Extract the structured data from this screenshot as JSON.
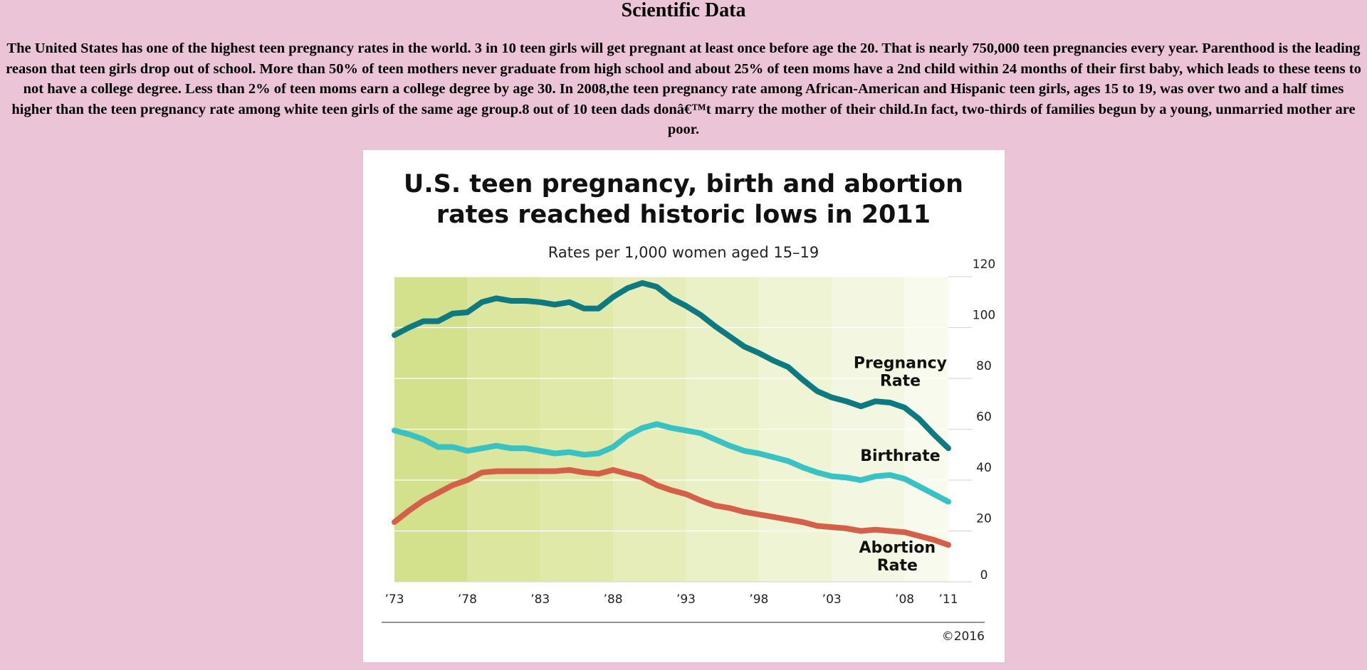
{
  "page": {
    "heading": "Scientific Data",
    "intro": "The United States has one of the highest teen pregnancy rates in the world. 3 in 10 teen girls will get pregnant at least once before age the 20. That is nearly 750,000 teen pregnancies every year. Parenthood is the leading reason that teen girls drop out of school. More than 50% of teen mothers never graduate from high school and about 25% of teen moms have a 2nd child within 24 months of their first baby, which leads to these teens to not have a college degree. Less than 2% of teen moms earn a college degree by age 30. In 2008,the teen pregnancy rate among African-American and Hispanic teen girls, ages 15 to 19, was over two and a half times higher than the teen pregnancy rate among white teen girls of the same age group.8 out of 10 teen dads donâ€™t marry the mother of their child.In fact, two-thirds of families begun by a young, unmarried mother are poor."
  },
  "chart_data": {
    "type": "line",
    "title_lines": [
      "U.S. teen pregnancy, birth and abortion",
      "rates reached historic lows in 2011"
    ],
    "subtitle": "Rates per 1,000 women aged 15–19",
    "copyright": "©2016",
    "xlim": [
      1973,
      2011
    ],
    "ylim": [
      0,
      120
    ],
    "x_ticks": [
      {
        "value": 1973,
        "label": "’73"
      },
      {
        "value": 1978,
        "label": "’78"
      },
      {
        "value": 1983,
        "label": "’83"
      },
      {
        "value": 1988,
        "label": "’88"
      },
      {
        "value": 1993,
        "label": "’93"
      },
      {
        "value": 1998,
        "label": "’98"
      },
      {
        "value": 2003,
        "label": "’03"
      },
      {
        "value": 2008,
        "label": "’08"
      },
      {
        "value": 2011,
        "label": "’11"
      }
    ],
    "y_ticks": [
      {
        "value": 0,
        "label": "0"
      },
      {
        "value": 20,
        "label": "20"
      },
      {
        "value": 40,
        "label": "40"
      },
      {
        "value": 60,
        "label": "60"
      },
      {
        "value": 80,
        "label": "80"
      },
      {
        "value": 100,
        "label": "100"
      },
      {
        "value": 120,
        "label": "120"
      }
    ],
    "y_axis_side": "right",
    "grid": true,
    "background_bands": [
      "#d3e08c",
      "#dce69e",
      "#e0e9a8",
      "#e6edb8",
      "#eaf1c6",
      "#eff4d4",
      "#f3f7e1",
      "#f8faee"
    ],
    "gridline_color": "#ffffff",
    "x": [
      1973,
      1974,
      1975,
      1976,
      1977,
      1978,
      1979,
      1980,
      1981,
      1982,
      1983,
      1984,
      1985,
      1986,
      1987,
      1988,
      1989,
      1990,
      1991,
      1992,
      1993,
      1994,
      1995,
      1996,
      1997,
      1998,
      1999,
      2000,
      2001,
      2002,
      2003,
      2004,
      2005,
      2006,
      2007,
      2008,
      2009,
      2010,
      2011
    ],
    "series": [
      {
        "name": "Pregnancy Rate",
        "label_lines": [
          "Pregnancy",
          "Rate"
        ],
        "color": "#0d7a82",
        "values": [
          97,
          100,
          102.5,
          102.5,
          105.5,
          106,
          110,
          111.5,
          110.5,
          110.5,
          110,
          109,
          110,
          107.5,
          107.5,
          112,
          115.5,
          117.5,
          116,
          111.5,
          108.5,
          105,
          100.5,
          96.5,
          92.5,
          90,
          87,
          84.5,
          79.5,
          75,
          72.5,
          71,
          69,
          71,
          70.5,
          68.5,
          64,
          58,
          52.5
        ]
      },
      {
        "name": "Birthrate",
        "label_lines": [
          "Birthrate"
        ],
        "color": "#38c2c4",
        "values": [
          59.5,
          58,
          56,
          53,
          53,
          51.5,
          52.5,
          53.5,
          52.5,
          52.5,
          51.5,
          50.5,
          51,
          50,
          50.5,
          53,
          57.5,
          60.5,
          62,
          60.5,
          59.5,
          58.5,
          56,
          53.5,
          51.5,
          50.5,
          49,
          47.5,
          45,
          43,
          41.5,
          41,
          40,
          41.5,
          42,
          40.5,
          37.5,
          34.5,
          31.5
        ]
      },
      {
        "name": "Abortion Rate",
        "label_lines": [
          "Abortion",
          "Rate"
        ],
        "color": "#d5604a",
        "values": [
          23.5,
          28,
          32,
          35,
          38,
          40,
          43,
          43.5,
          43.5,
          43.5,
          43.5,
          43.5,
          44,
          43,
          42.5,
          44,
          42.5,
          41,
          38,
          36,
          34.5,
          32,
          30,
          29,
          27.5,
          26.5,
          25.5,
          24.5,
          23.5,
          22,
          21.5,
          21,
          20,
          20.5,
          20,
          19.5,
          18,
          16.5,
          14.5
        ]
      }
    ]
  }
}
